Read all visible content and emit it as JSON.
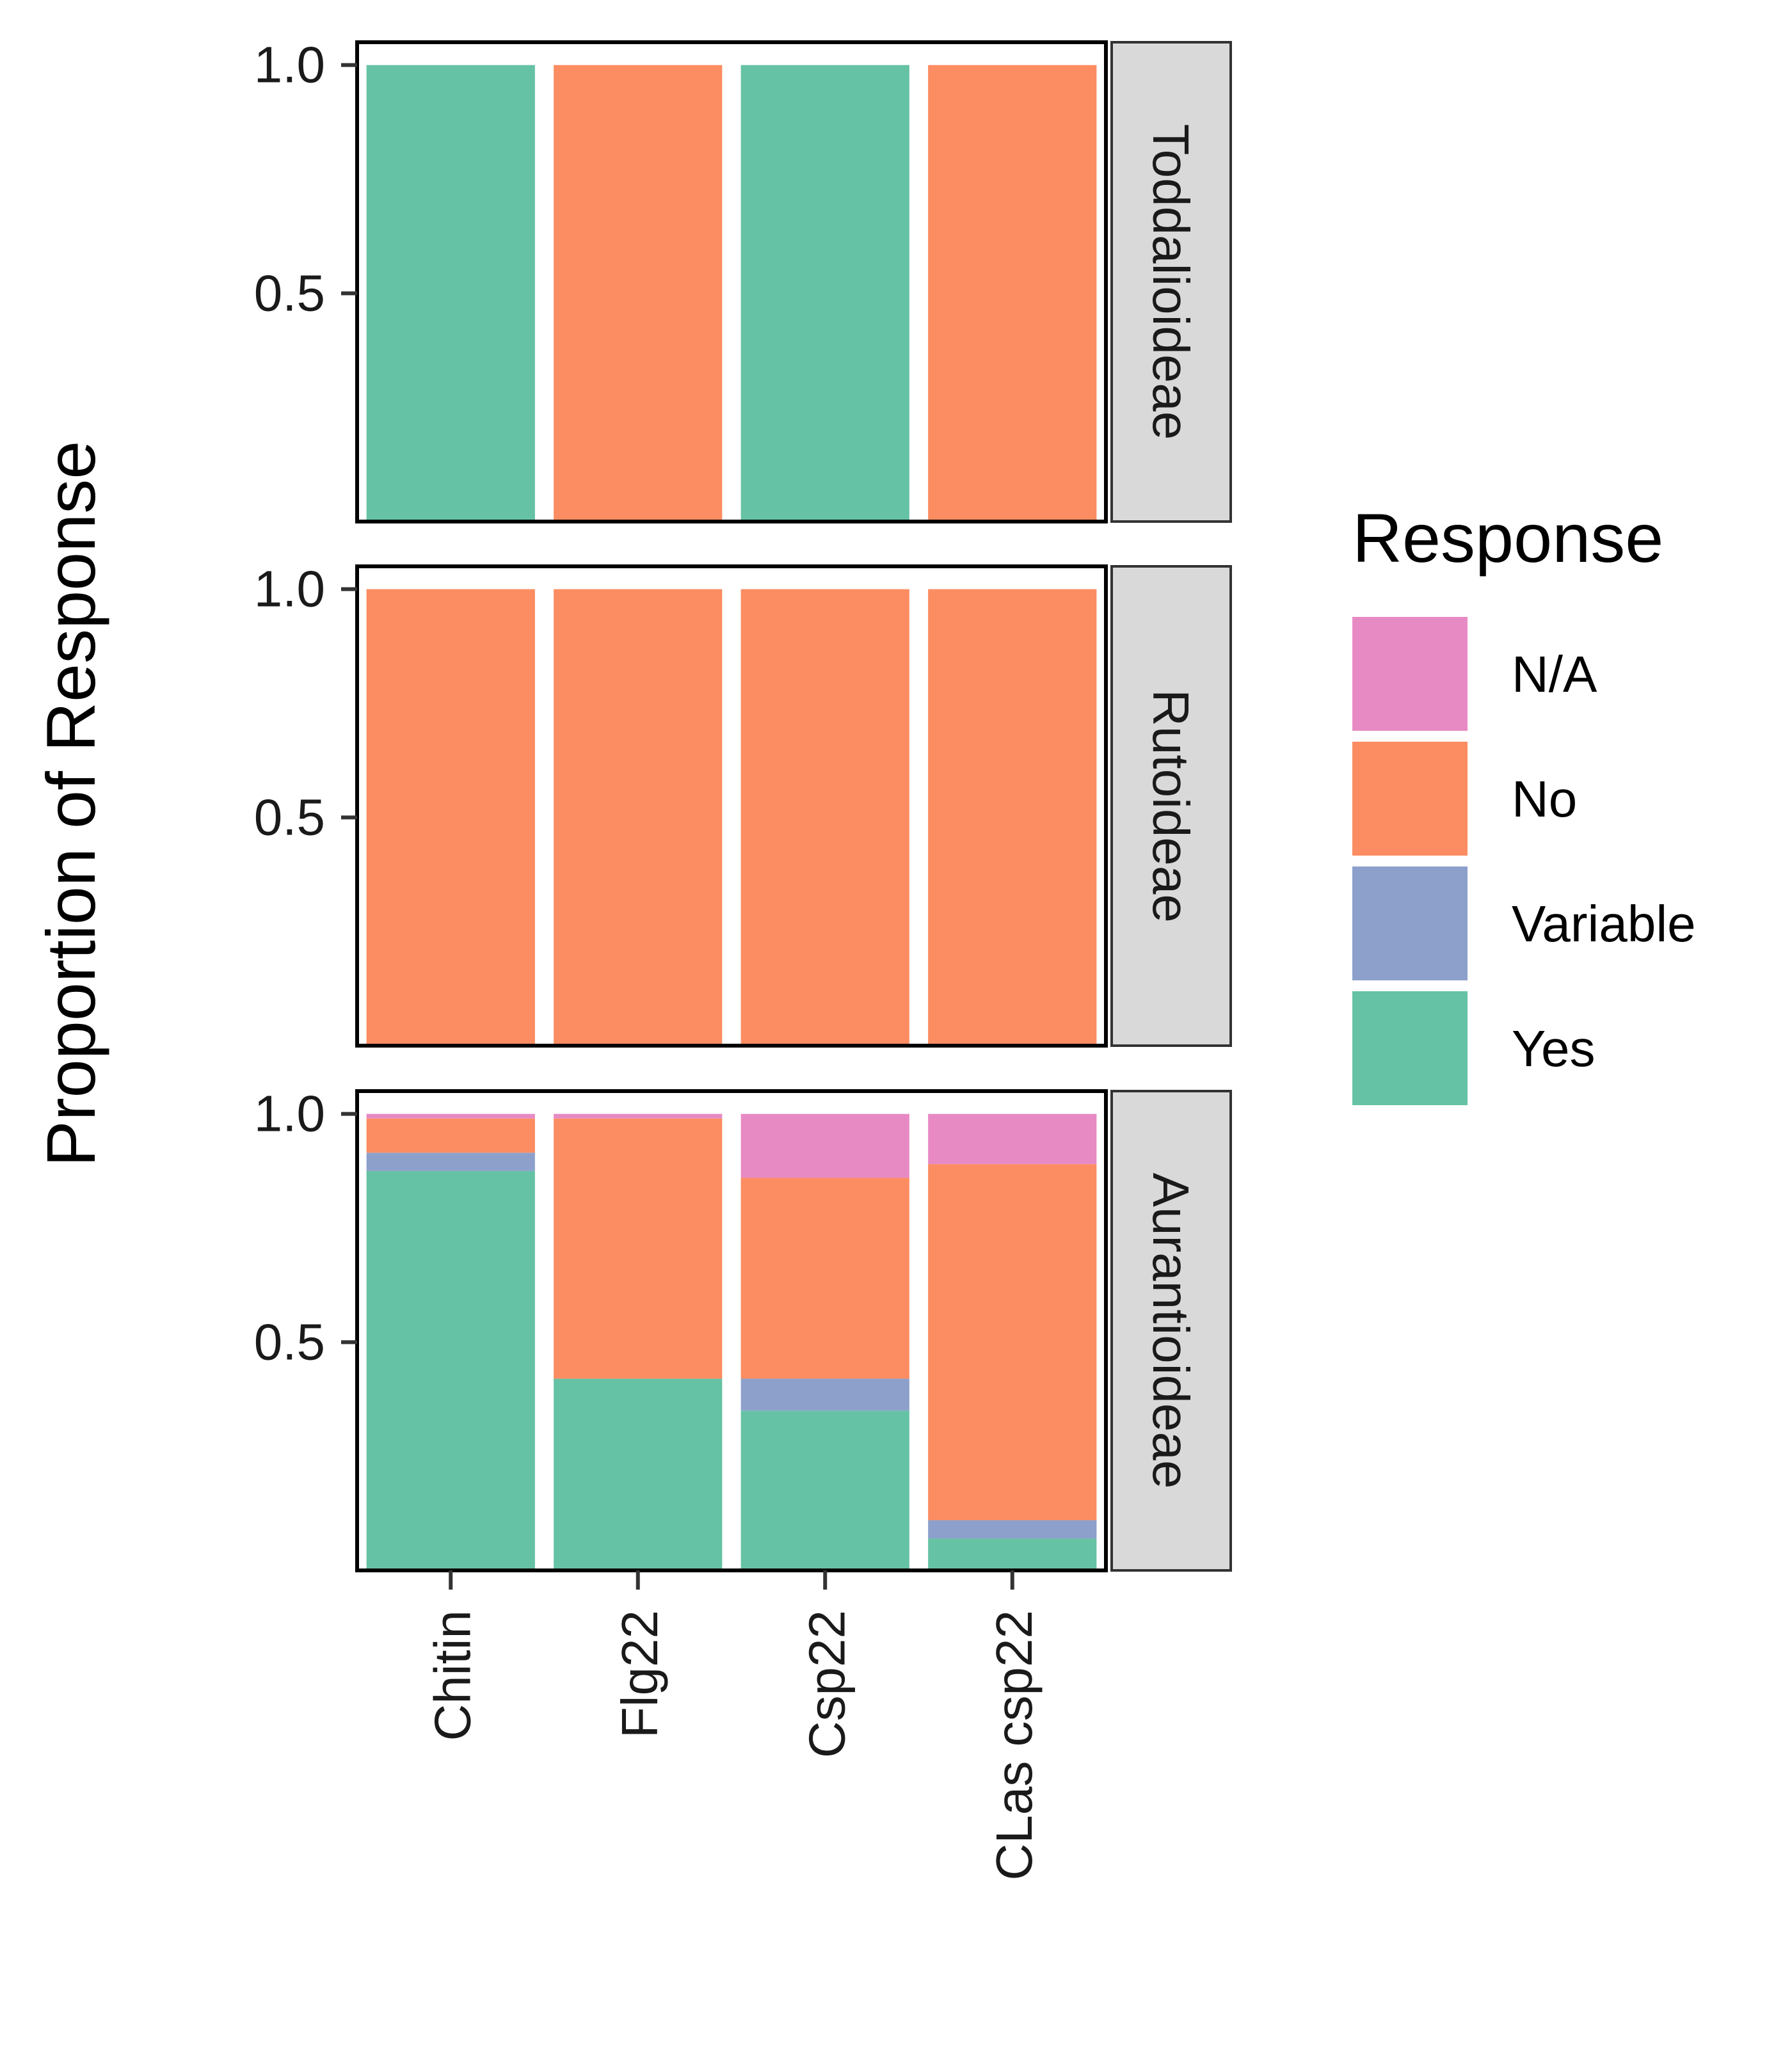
{
  "chart_data": {
    "type": "bar",
    "stacked": true,
    "faceted": true,
    "ylabel": "Proportion of Response",
    "xlabel": "",
    "ylim": [
      0,
      1.05
    ],
    "yticks": [
      0.5,
      1.0
    ],
    "ytick_labels": [
      "0.5",
      "1.0"
    ],
    "categories": [
      "Chitin",
      "Flg22",
      "Csp22",
      "CLas csp22"
    ],
    "legend": {
      "title": "Response",
      "placement": "right",
      "entries": [
        "N/A",
        "No",
        "Variable",
        "Yes"
      ]
    },
    "colors": {
      "N/A": "#E78AC3",
      "No": "#FC8D62",
      "Variable": "#8DA0CB",
      "Yes": "#66C2A5",
      "strip_fill": "#D9D9D9"
    },
    "stack_order": [
      "Yes",
      "Variable",
      "No",
      "N/A"
    ],
    "facets": [
      {
        "label": "Toddalioideae",
        "series": [
          {
            "name": "Yes",
            "values": [
              1.0,
              0.0,
              1.0,
              0.0
            ]
          },
          {
            "name": "Variable",
            "values": [
              0.0,
              0.0,
              0.0,
              0.0
            ]
          },
          {
            "name": "No",
            "values": [
              0.0,
              1.0,
              0.0,
              1.0
            ]
          },
          {
            "name": "N/A",
            "values": [
              0.0,
              0.0,
              0.0,
              0.0
            ]
          }
        ]
      },
      {
        "label": "Rutoideae",
        "series": [
          {
            "name": "Yes",
            "values": [
              0.0,
              0.0,
              0.0,
              0.0
            ]
          },
          {
            "name": "Variable",
            "values": [
              0.0,
              0.0,
              0.0,
              0.0
            ]
          },
          {
            "name": "No",
            "values": [
              1.0,
              1.0,
              1.0,
              1.0
            ]
          },
          {
            "name": "N/A",
            "values": [
              0.0,
              0.0,
              0.0,
              0.0
            ]
          }
        ]
      },
      {
        "label": "Aurantioideae",
        "series": [
          {
            "name": "Yes",
            "values": [
              0.875,
              0.42,
              0.35,
              0.07
            ]
          },
          {
            "name": "Variable",
            "values": [
              0.04,
              0.0,
              0.07,
              0.04
            ]
          },
          {
            "name": "No",
            "values": [
              0.075,
              0.57,
              0.44,
              0.78
            ]
          },
          {
            "name": "N/A",
            "values": [
              0.01,
              0.01,
              0.14,
              0.11
            ]
          }
        ]
      }
    ]
  }
}
